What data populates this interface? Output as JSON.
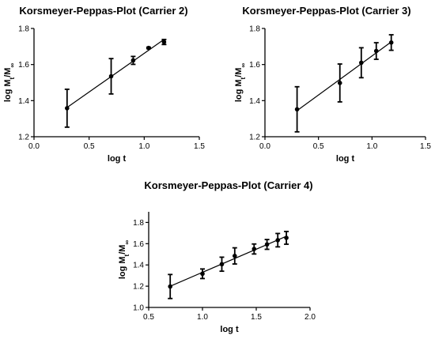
{
  "chart_data": [
    {
      "type": "scatter",
      "title": "Korsmeyer-Peppas-Plot (Carrier 2)",
      "xlabel": "log t",
      "ylabel": "log Mt/M∞",
      "xlim": [
        0.0,
        1.5
      ],
      "ylim": [
        1.2,
        1.8
      ],
      "x_ticks": [
        "0.0",
        "0.5",
        "1.0",
        "1.5"
      ],
      "y_ticks": [
        "1.2",
        "1.4",
        "1.6",
        "1.8"
      ],
      "grid": false,
      "fit_line": true,
      "points": [
        {
          "x": 0.3,
          "y": 1.358,
          "err": 0.105
        },
        {
          "x": 0.7,
          "y": 1.535,
          "err": 0.098
        },
        {
          "x": 0.9,
          "y": 1.623,
          "err": 0.022
        },
        {
          "x": 1.04,
          "y": 1.692,
          "err": 0.004
        },
        {
          "x": 1.18,
          "y": 1.725,
          "err": 0.014
        }
      ]
    },
    {
      "type": "scatter",
      "title": "Korsmeyer-Peppas-Plot (Carrier 3)",
      "xlabel": "log t",
      "ylabel": "log Mt/M∞",
      "xlim": [
        0.0,
        1.5
      ],
      "ylim": [
        1.2,
        1.8
      ],
      "x_ticks": [
        "0.0",
        "0.5",
        "1.0",
        "1.5"
      ],
      "y_ticks": [
        "1.2",
        "1.4",
        "1.6",
        "1.8"
      ],
      "grid": false,
      "fit_line": true,
      "points": [
        {
          "x": 0.3,
          "y": 1.352,
          "err": 0.125
        },
        {
          "x": 0.7,
          "y": 1.498,
          "err": 0.105
        },
        {
          "x": 0.9,
          "y": 1.61,
          "err": 0.083
        },
        {
          "x": 1.04,
          "y": 1.675,
          "err": 0.046
        },
        {
          "x": 1.18,
          "y": 1.722,
          "err": 0.043
        }
      ]
    },
    {
      "type": "scatter",
      "title": "Korsmeyer-Peppas-Plot (Carrier 4)",
      "xlabel": "log t",
      "ylabel": "log Mt/M∞",
      "xlim": [
        0.5,
        2.0
      ],
      "ylim": [
        1.0,
        1.9
      ],
      "x_ticks": [
        "0.5",
        "1.0",
        "1.5",
        "2.0"
      ],
      "y_ticks": [
        "1.0",
        "1.2",
        "1.4",
        "1.6",
        "1.8"
      ],
      "grid": false,
      "fit_line": true,
      "points": [
        {
          "x": 0.7,
          "y": 1.197,
          "err": 0.113
        },
        {
          "x": 1.0,
          "y": 1.317,
          "err": 0.045
        },
        {
          "x": 1.18,
          "y": 1.407,
          "err": 0.066
        },
        {
          "x": 1.3,
          "y": 1.485,
          "err": 0.076
        },
        {
          "x": 1.48,
          "y": 1.55,
          "err": 0.047
        },
        {
          "x": 1.6,
          "y": 1.593,
          "err": 0.046
        },
        {
          "x": 1.7,
          "y": 1.633,
          "err": 0.063
        },
        {
          "x": 1.78,
          "y": 1.655,
          "err": 0.06
        }
      ]
    }
  ]
}
